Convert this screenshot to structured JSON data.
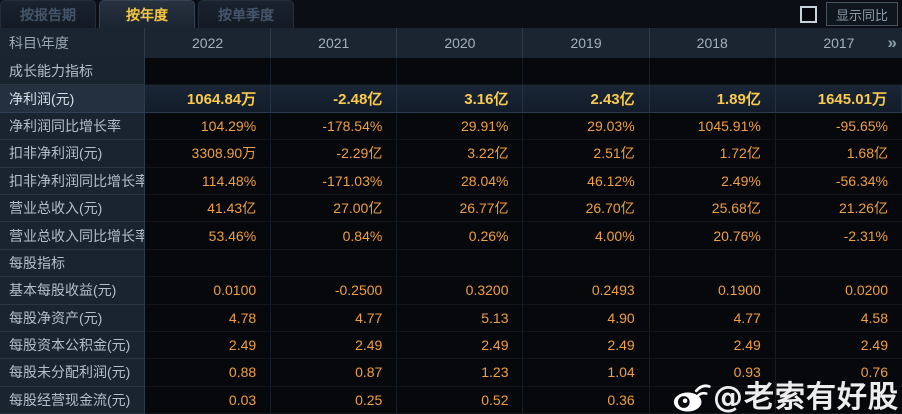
{
  "tabs": [
    {
      "id": "report-period",
      "label": "按报告期",
      "active": false
    },
    {
      "id": "annual",
      "label": "按年度",
      "active": true
    },
    {
      "id": "single-quarter",
      "label": "按单季度",
      "active": false
    }
  ],
  "controls": {
    "yoy_checkbox_checked": false,
    "yoy_toggle_label": "显示同比"
  },
  "table": {
    "corner_label": "科目\\年度",
    "year_columns": [
      "2022",
      "2021",
      "2020",
      "2019",
      "2018",
      "2017"
    ],
    "more_columns_icon": "»",
    "rows": [
      {
        "label": "成长能力指标",
        "type": "section",
        "values": [
          "",
          "",
          "",
          "",
          "",
          ""
        ]
      },
      {
        "label": "净利润(元)",
        "type": "highlight",
        "values": [
          "1064.84万",
          "-2.48亿",
          "3.16亿",
          "2.43亿",
          "1.89亿",
          "1645.01万"
        ]
      },
      {
        "label": "净利润同比增长率",
        "type": "data",
        "values": [
          "104.29%",
          "-178.54%",
          "29.91%",
          "29.03%",
          "1045.91%",
          "-95.65%"
        ]
      },
      {
        "label": "扣非净利润(元)",
        "type": "data",
        "values": [
          "3308.90万",
          "-2.29亿",
          "3.22亿",
          "2.51亿",
          "1.72亿",
          "1.68亿"
        ]
      },
      {
        "label": "扣非净利润同比增长率",
        "type": "data",
        "values": [
          "114.48%",
          "-171.03%",
          "28.04%",
          "46.12%",
          "2.49%",
          "-56.34%"
        ]
      },
      {
        "label": "营业总收入(元)",
        "type": "data",
        "values": [
          "41.43亿",
          "27.00亿",
          "26.77亿",
          "26.70亿",
          "25.68亿",
          "21.26亿"
        ]
      },
      {
        "label": "营业总收入同比增长率",
        "type": "data",
        "values": [
          "53.46%",
          "0.84%",
          "0.26%",
          "4.00%",
          "20.76%",
          "-2.31%"
        ]
      },
      {
        "label": "每股指标",
        "type": "section",
        "values": [
          "",
          "",
          "",
          "",
          "",
          ""
        ]
      },
      {
        "label": "基本每股收益(元)",
        "type": "data",
        "values": [
          "0.0100",
          "-0.2500",
          "0.3200",
          "0.2493",
          "0.1900",
          "0.0200"
        ]
      },
      {
        "label": "每股净资产(元)",
        "type": "data",
        "values": [
          "4.78",
          "4.77",
          "5.13",
          "4.90",
          "4.77",
          "4.58"
        ]
      },
      {
        "label": "每股资本公积金(元)",
        "type": "data",
        "values": [
          "2.49",
          "2.49",
          "2.49",
          "2.49",
          "2.49",
          "2.49"
        ]
      },
      {
        "label": "每股未分配利润(元)",
        "type": "data",
        "values": [
          "0.88",
          "0.87",
          "1.23",
          "1.04",
          "0.93",
          "0.76"
        ]
      },
      {
        "label": "每股经营现金流(元)",
        "type": "data",
        "values": [
          "0.03",
          "0.25",
          "0.52",
          "0.36",
          "",
          ""
        ]
      }
    ]
  },
  "watermark": {
    "icon": "weibo-icon",
    "text": "@老索有好股"
  },
  "colors": {
    "accent_yellow": "#f6c643",
    "value_orange": "#ef9f44",
    "highlight_value_yellow": "#f8ca4d",
    "header_bg": "#1b2531",
    "label_bg": "#1a242f",
    "cell_bg": "#06080b",
    "highlight_row_bg": "#16202e",
    "watermark_white": "#ffffff"
  }
}
